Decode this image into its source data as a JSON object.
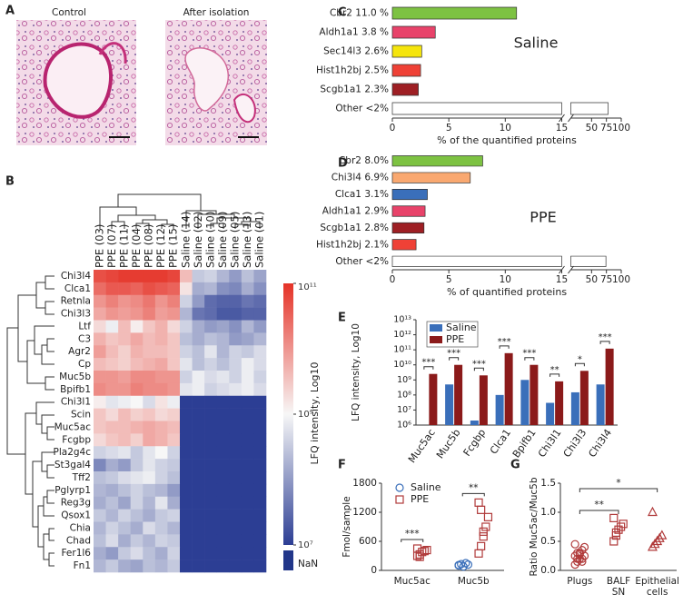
{
  "panel_a": {
    "letter": "A",
    "images": [
      {
        "label": "Control"
      },
      {
        "label": "After isolation"
      }
    ]
  },
  "chart_data": [
    {
      "type": "heatmap",
      "letter": "B",
      "columns": [
        "PPE (03)",
        "PPE (07)",
        "PPE (11)",
        "PPE (04)",
        "PPE (08)",
        "PPE (12)",
        "PPE (15)",
        "Saline (14)",
        "Saline (02)",
        "Saline (10)",
        "Saline (09)",
        "Saline (05)",
        "Saline (13)",
        "Saline (01)"
      ],
      "rows": [
        "Chi3l4",
        "Clca1",
        "Retnla",
        "Chi3l3",
        "Ltf",
        "C3",
        "Agr2",
        "Cp",
        "Muc5b",
        "Bpifb1",
        "Chi3l1",
        "Scin",
        "Muc5ac",
        "Fcgbp",
        "Pla2g4c",
        "St3gal4",
        "Tff2",
        "Pglyrp1",
        "Reg3g",
        "Qsox1",
        "Chia",
        "Chad",
        "Fer1l6",
        "Fn1"
      ],
      "matrix": [
        [
          10.7,
          10.8,
          10.9,
          10.9,
          10.9,
          10.9,
          10.8,
          9.6,
          8.5,
          8.6,
          8.3,
          8.0,
          8.4,
          8.1
        ],
        [
          10.4,
          10.6,
          10.6,
          10.5,
          10.7,
          10.6,
          10.5,
          9.2,
          8.2,
          8.3,
          7.9,
          7.8,
          8.2,
          7.9
        ],
        [
          10.0,
          10.2,
          10.0,
          10.1,
          10.3,
          10.0,
          10.2,
          8.6,
          8.0,
          7.5,
          7.4,
          7.4,
          7.6,
          7.5
        ],
        [
          9.8,
          10.0,
          9.9,
          10.0,
          10.2,
          9.9,
          10.0,
          8.3,
          7.6,
          7.5,
          7.3,
          7.3,
          7.4,
          7.4
        ],
        [
          9.3,
          8.9,
          9.6,
          9.1,
          9.5,
          9.7,
          9.3,
          8.6,
          8.2,
          8.0,
          8.1,
          7.9,
          8.3,
          8.0
        ],
        [
          9.7,
          9.5,
          9.6,
          9.8,
          9.6,
          9.7,
          9.5,
          8.4,
          8.2,
          8.4,
          8.3,
          8.0,
          8.1,
          8.3
        ],
        [
          9.9,
          9.6,
          9.4,
          9.7,
          9.6,
          9.6,
          9.5,
          8.6,
          8.4,
          8.8,
          8.3,
          8.6,
          8.5,
          8.7
        ],
        [
          9.6,
          9.5,
          9.4,
          9.6,
          9.7,
          9.8,
          9.5,
          8.8,
          8.4,
          8.6,
          8.4,
          8.6,
          8.9,
          8.7
        ],
        [
          10.0,
          10.0,
          9.9,
          10.1,
          10.1,
          10.0,
          10.0,
          8.6,
          8.9,
          8.7,
          8.8,
          8.6,
          8.9,
          8.6
        ],
        [
          10.1,
          10.0,
          10.0,
          10.2,
          10.1,
          10.1,
          10.0,
          8.8,
          8.9,
          8.6,
          8.7,
          8.8,
          8.9,
          8.7
        ],
        [
          9.1,
          8.8,
          8.9,
          9.0,
          8.7,
          9.2,
          8.9,
          7.0,
          7.0,
          7.0,
          7.0,
          7.0,
          7.0,
          7.0
        ],
        [
          9.5,
          9.3,
          9.6,
          9.4,
          9.5,
          9.3,
          9.4,
          7.0,
          7.0,
          7.0,
          7.0,
          7.0,
          7.0,
          7.0
        ],
        [
          9.5,
          9.6,
          9.6,
          9.7,
          9.8,
          9.7,
          9.6,
          7.0,
          7.0,
          7.0,
          7.0,
          7.0,
          7.0,
          7.0
        ],
        [
          9.3,
          9.5,
          9.6,
          9.4,
          9.8,
          9.7,
          9.5,
          7.0,
          7.0,
          7.0,
          7.0,
          7.0,
          7.0,
          7.0
        ],
        [
          8.6,
          8.7,
          8.8,
          8.5,
          8.8,
          9.0,
          8.6,
          7.0,
          7.0,
          7.0,
          7.0,
          7.0,
          7.0,
          7.0
        ],
        [
          7.8,
          8.2,
          8.0,
          8.5,
          8.8,
          8.6,
          8.5,
          7.0,
          7.0,
          7.0,
          7.0,
          7.0,
          7.0,
          7.0
        ],
        [
          8.4,
          8.5,
          8.7,
          8.8,
          8.9,
          8.6,
          8.4,
          7.0,
          7.0,
          7.0,
          7.0,
          7.0,
          7.0,
          7.0
        ],
        [
          8.3,
          8.2,
          8.4,
          8.6,
          8.4,
          8.3,
          8.0,
          7.0,
          7.0,
          7.0,
          7.0,
          7.0,
          7.0,
          7.0
        ],
        [
          8.2,
          8.4,
          8.1,
          8.6,
          8.3,
          8.8,
          8.2,
          7.0,
          7.0,
          7.0,
          7.0,
          7.0,
          7.0,
          7.0
        ],
        [
          8.5,
          8.3,
          8.6,
          8.4,
          8.2,
          8.5,
          8.6,
          7.0,
          7.0,
          7.0,
          7.0,
          7.0,
          7.0,
          7.0
        ],
        [
          8.3,
          8.6,
          8.4,
          8.2,
          8.7,
          8.5,
          8.3,
          7.0,
          7.0,
          7.0,
          7.0,
          7.0,
          7.0,
          7.0
        ],
        [
          8.4,
          8.7,
          8.2,
          8.5,
          8.3,
          8.6,
          8.5,
          7.0,
          7.0,
          7.0,
          7.0,
          7.0,
          7.0,
          7.0
        ],
        [
          8.2,
          8.0,
          8.5,
          8.7,
          8.4,
          8.2,
          8.6,
          7.0,
          7.0,
          7.0,
          7.0,
          7.0,
          7.0,
          7.0
        ],
        [
          8.3,
          8.5,
          8.2,
          8.1,
          8.4,
          8.3,
          8.5,
          7.0,
          7.0,
          7.0,
          7.0,
          7.0,
          7.0,
          7.0
        ]
      ],
      "clim": [
        7,
        11
      ],
      "colorbar_ticks": [
        {
          "value": 11,
          "label": "10¹¹"
        },
        {
          "value": 9,
          "label": "10⁹"
        },
        {
          "value": 7,
          "label": "10⁷"
        }
      ],
      "colorbar_label": "LFQ intensity, Log10",
      "nan_label": "NaN",
      "colors": {
        "low": "#2c3e94",
        "mid": "#f7f7f7",
        "high": "#e53227",
        "nan": "#22378a"
      }
    },
    {
      "type": "barh",
      "letter": "C",
      "categories": [
        "Cbr2",
        "Aldh1a1",
        "Sec14l3",
        "Hist1h2bj",
        "Scgb1a1",
        "Other <2%"
      ],
      "value_labels": [
        "11.0 %",
        "3.8 %",
        "2.6%",
        "2.5%",
        "2.3%",
        null
      ],
      "values": [
        11.0,
        3.8,
        2.6,
        2.5,
        2.3,
        77.8
      ],
      "colors": [
        "#7dc242",
        "#e8436a",
        "#f5e50d",
        "#ef4136",
        "#9e1f24",
        "#ffffff"
      ],
      "xlim": [
        0,
        100
      ],
      "xbreak": 15,
      "xticks": [
        0,
        5,
        10,
        15,
        50,
        75,
        100
      ],
      "xlabel": "% of the quantified proteins",
      "annotation": "Saline"
    },
    {
      "type": "barh",
      "letter": "D",
      "categories": [
        "Cbr2",
        "Chi3l4",
        "Clca1",
        "Aldh1a1",
        "Scgb1a1",
        "Hist1h2bj",
        "Other <2%"
      ],
      "value_labels": [
        "8.0%",
        "6.9%",
        "3.1%",
        "2.9%",
        "2.8%",
        "2.1%",
        null
      ],
      "values": [
        8.0,
        6.9,
        3.1,
        2.9,
        2.8,
        2.1,
        74.2
      ],
      "colors": [
        "#7dc242",
        "#f9a870",
        "#3a6fba",
        "#e8436a",
        "#9e1f24",
        "#ef4136",
        "#ffffff"
      ],
      "xlim": [
        0,
        100
      ],
      "xbreak": 15,
      "xticks": [
        0,
        5,
        10,
        15,
        50,
        75,
        100
      ],
      "xlabel": "% of quantified proteins",
      "annotation": "PPE"
    },
    {
      "type": "bar",
      "letter": "E",
      "log": true,
      "categories": [
        "Muc5ac",
        "Muc5b",
        "Fcgbp",
        "Clca1",
        "Bpifb1",
        "Chi3l1",
        "Chi3l3",
        "Chi3l4"
      ],
      "series": [
        {
          "name": "Saline",
          "color": "#3a6fba",
          "values": [
            null,
            500000000,
            2000000,
            100000000,
            1000000000,
            30000000,
            150000000,
            500000000
          ]
        },
        {
          "name": "PPE",
          "color": "#8b1a1a",
          "values": [
            2500000000,
            10000000000,
            2000000000,
            60000000000,
            10000000000,
            800000000,
            4000000000,
            120000000000
          ]
        }
      ],
      "significance": [
        "***",
        "***",
        "***",
        "***",
        "***",
        "**",
        "*",
        "***"
      ],
      "ylim": [
        1000000,
        10000000000000
      ],
      "yticks": [
        {
          "value": 1000000,
          "label": "10⁶"
        },
        {
          "value": 10000000,
          "label": "10⁷"
        },
        {
          "value": 100000000,
          "label": "10⁸"
        },
        {
          "value": 1000000000,
          "label": "10⁹"
        },
        {
          "value": 10000000000,
          "label": "10¹⁰"
        },
        {
          "value": 100000000000,
          "label": "10¹¹"
        },
        {
          "value": 1000000000000,
          "label": "10¹²"
        },
        {
          "value": 10000000000000,
          "label": "10¹³"
        }
      ],
      "ylabel": "LFQ intensity, Log10"
    },
    {
      "type": "strip",
      "letter": "F",
      "categories": [
        "Muc5ac",
        "Muc5b"
      ],
      "series": [
        {
          "name": "Saline",
          "color": "#3a6fba",
          "marker": "circle",
          "values": [
            [],
            [
              100,
              130,
              80,
              150,
              120,
              110
            ]
          ]
        },
        {
          "name": "PPE",
          "color": "#b03a3a",
          "marker": "square",
          "values": [
            [
              300,
              330,
              380,
              400,
              420,
              450,
              280
            ],
            [
              350,
              500,
              700,
              900,
              1100,
              1400,
              1250,
              800
            ]
          ]
        }
      ],
      "significance": [
        "***",
        "**"
      ],
      "ylim": [
        0,
        1800
      ],
      "yticks": [
        0,
        600,
        1200,
        1800
      ],
      "ylabel": "Fmol/sample"
    },
    {
      "type": "strip",
      "letter": "G",
      "categories": [
        "Plugs",
        "BALF\nSN",
        "Epithelial\ncells"
      ],
      "series": [
        {
          "color": "#b03a3a",
          "markers": [
            "circle",
            "square",
            "triangle"
          ],
          "values": [
            [
              0.1,
              0.15,
              0.2,
              0.2,
              0.25,
              0.25,
              0.3,
              0.3,
              0.35,
              0.4,
              0.45,
              0.2,
              0.28,
              0.15
            ],
            [
              0.5,
              0.6,
              0.7,
              0.75,
              0.8,
              0.9,
              0.65
            ],
            [
              0.4,
              0.45,
              0.5,
              0.55,
              0.6,
              1.0
            ]
          ]
        }
      ],
      "significance": [
        "**",
        "*"
      ],
      "ylim": [
        0,
        1.5
      ],
      "yticks": [
        {
          "value": 0,
          "label": "0.0"
        },
        {
          "value": 0.5,
          "label": "0.5"
        },
        {
          "value": 1,
          "label": "1.0"
        },
        {
          "value": 1.5,
          "label": "1.5"
        }
      ],
      "ylabel": "Ratio Muc5ac/Muc5b"
    }
  ]
}
